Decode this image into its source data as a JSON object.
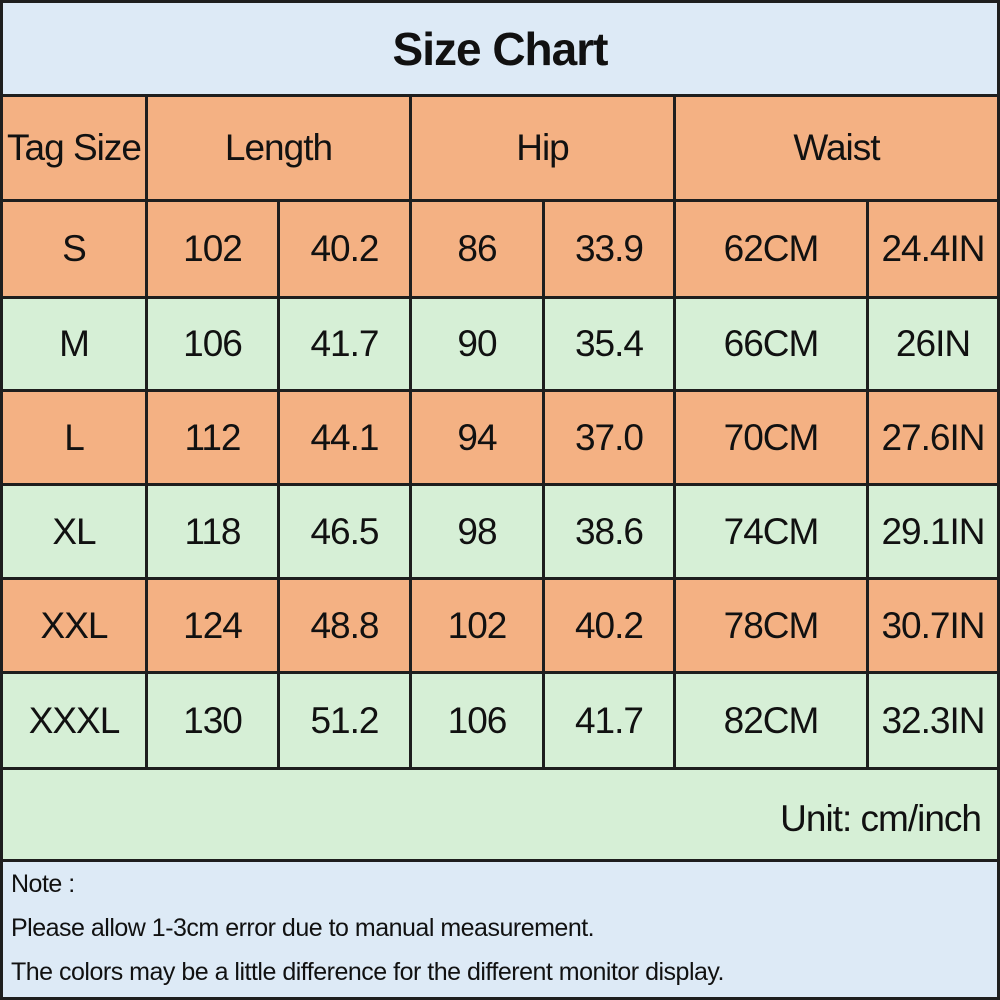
{
  "header": {
    "title": "Size Chart"
  },
  "table": {
    "columns": [
      "Tag Size",
      "Length",
      "Hip",
      "Waist"
    ],
    "rows": [
      [
        "S",
        "102",
        "40.2",
        "86",
        "33.9",
        "62CM",
        "24.4IN"
      ],
      [
        "M",
        "106",
        "41.7",
        "90",
        "35.4",
        "66CM",
        "26IN"
      ],
      [
        "L",
        "112",
        "44.1",
        "94",
        "37.0",
        "70CM",
        "27.6IN"
      ],
      [
        "XL",
        "118",
        "46.5",
        "98",
        "38.6",
        "74CM",
        "29.1IN"
      ],
      [
        "XXL",
        "124",
        "48.8",
        "102",
        "40.2",
        "78CM",
        "30.7IN"
      ],
      [
        "XXXL",
        "130",
        "51.2",
        "106",
        "41.7",
        "82CM",
        "32.3IN"
      ]
    ],
    "unit": "Unit: cm/inch"
  },
  "note": {
    "title": "Note :",
    "lines": [
      "Please allow 1-3cm error due to manual measurement.",
      "The colors may be a little difference for the different monitor display."
    ]
  }
}
